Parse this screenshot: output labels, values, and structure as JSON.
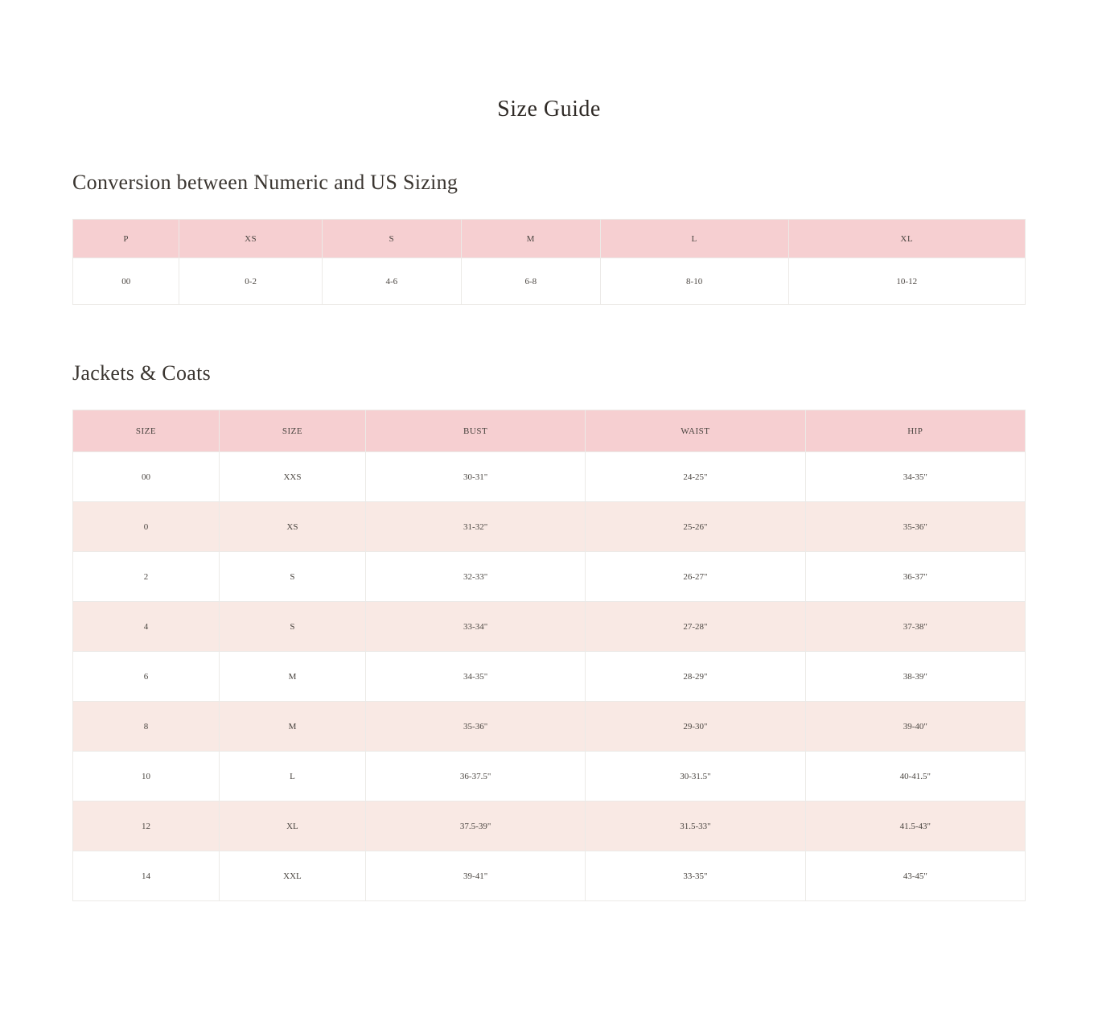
{
  "page_title": "Size Guide",
  "colors": {
    "header_bg": "#f6cfd1",
    "row_alt_bg": "#f9e9e4",
    "row_bg": "#ffffff",
    "border": "#eceae7",
    "text": "#3a3530",
    "background": "#ffffff"
  },
  "typography": {
    "page_title_fontsize": 28,
    "section_title_fontsize": 26,
    "cell_fontsize": 11,
    "font_family": "Georgia, serif"
  },
  "conversion": {
    "title": "Conversion between Numeric and US Sizing",
    "columns": [
      "P",
      "XS",
      "S",
      "M",
      "L",
      "XL"
    ],
    "rows": [
      [
        "00",
        "0-2",
        "4-6",
        "6-8",
        "8-10",
        "10-12"
      ]
    ]
  },
  "jackets": {
    "title": "Jackets & Coats",
    "columns": [
      "SIZE",
      "SIZE",
      "BUST",
      "WAIST",
      "HIP"
    ],
    "rows": [
      [
        "00",
        "XXS",
        "30-31\"",
        "24-25\"",
        "34-35\""
      ],
      [
        "0",
        "XS",
        "31-32\"",
        "25-26\"",
        "35-36\""
      ],
      [
        "2",
        "S",
        "32-33\"",
        "26-27\"",
        "36-37\""
      ],
      [
        "4",
        "S",
        "33-34\"",
        "27-28\"",
        "37-38\""
      ],
      [
        "6",
        "M",
        "34-35\"",
        "28-29\"",
        "38-39\""
      ],
      [
        "8",
        "M",
        "35-36\"",
        "29-30\"",
        "39-40\""
      ],
      [
        "10",
        "L",
        "36-37.5\"",
        "30-31.5\"",
        "40-41.5\""
      ],
      [
        "12",
        "XL",
        "37.5-39\"",
        "31.5-33\"",
        "41.5-43\""
      ],
      [
        "14",
        "XXL",
        "39-41\"",
        "33-35\"",
        "43-45\""
      ]
    ]
  }
}
